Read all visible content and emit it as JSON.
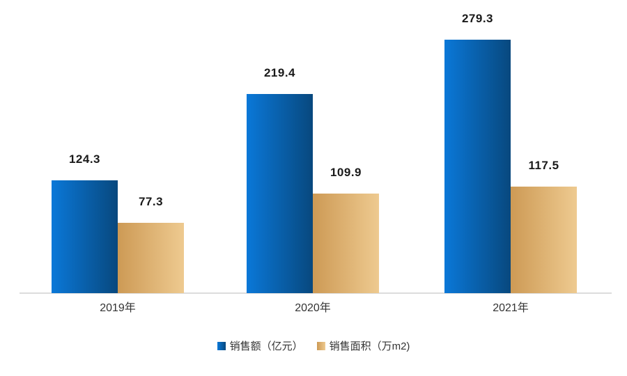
{
  "chart_data": {
    "type": "bar",
    "title": "",
    "xlabel": "",
    "ylabel": "",
    "categories": [
      "2019年",
      "2020年",
      "2021年"
    ],
    "series": [
      {
        "name": "销售额（亿元）",
        "values": [
          124.3,
          219.4,
          279.3
        ],
        "labels": [
          "124.3",
          "219.4",
          "279.3"
        ],
        "gradient": [
          "#0a78d8",
          "#08487e"
        ]
      },
      {
        "name": "销售面积（万m2)",
        "values": [
          77.3,
          109.9,
          117.5
        ],
        "labels": [
          "77.3",
          "109.9",
          "117.5"
        ],
        "gradient": [
          "#cd9a55",
          "#eeca90"
        ]
      }
    ],
    "ylim": [
      0,
      290
    ],
    "grid": false,
    "legend_position": "bottom",
    "value_label_color": "#1a1a1a",
    "axis_label_color": "#333333",
    "axis_line_color": "#dcdcdc",
    "background_color": "#ffffff"
  }
}
